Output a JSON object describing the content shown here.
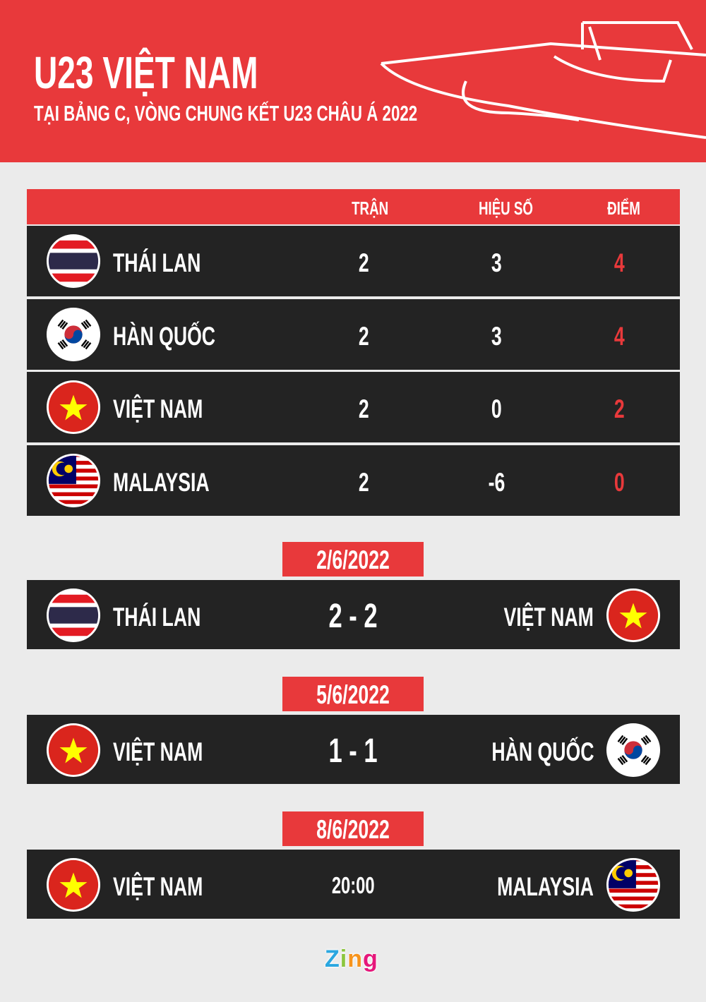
{
  "header": {
    "title": "U23 VIỆT NAM",
    "subtitle": "TẠI BẢNG C, VÒNG CHUNG KẾT U23 CHÂU Á 2022"
  },
  "colors": {
    "accent": "#e8393b",
    "row": "#232323",
    "background": "#ebebeb"
  },
  "standings": {
    "columns": [
      "TRẬN",
      "HIỆU SỐ",
      "ĐIỂM"
    ],
    "rows": [
      {
        "team": "THÁI LAN",
        "flag": "thailand",
        "played": "2",
        "gd": "3",
        "pts": "4"
      },
      {
        "team": "HÀN QUỐC",
        "flag": "korea",
        "played": "2",
        "gd": "3",
        "pts": "4"
      },
      {
        "team": "VIỆT NAM",
        "flag": "vietnam",
        "played": "2",
        "gd": "0",
        "pts": "2"
      },
      {
        "team": "MALAYSIA",
        "flag": "malaysia",
        "played": "2",
        "gd": "-6",
        "pts": "0"
      }
    ]
  },
  "matches": [
    {
      "date": "2/6/2022",
      "home": "THÁI LAN",
      "home_flag": "thailand",
      "result": "2 - 2",
      "away": "VIỆT NAM",
      "away_flag": "vietnam"
    },
    {
      "date": "5/6/2022",
      "home": "VIỆT NAM",
      "home_flag": "vietnam",
      "result": "1 - 1",
      "away": "HÀN QUỐC",
      "away_flag": "korea"
    },
    {
      "date": "8/6/2022",
      "home": "VIỆT NAM",
      "home_flag": "vietnam",
      "result": "20:00",
      "away": "MALAYSIA",
      "away_flag": "malaysia"
    }
  ],
  "logo": "Zing"
}
